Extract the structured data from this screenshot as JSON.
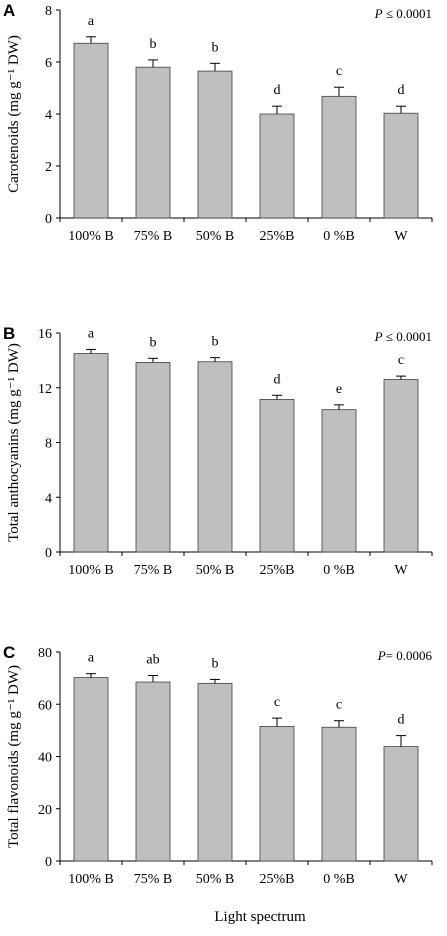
{
  "figure": {
    "xlabel": "Light spectrum"
  },
  "chart_data": [
    {
      "type": "bar",
      "panel": "A",
      "ylabel": "Carotenoids (mg g⁻¹ DW)",
      "p_label": "P",
      "p_value": " ≤ 0.0001",
      "categories": [
        "100% B",
        "75% B",
        "50% B",
        "25%B",
        "0 %B",
        "W"
      ],
      "values": [
        6.72,
        5.8,
        5.65,
        4.0,
        4.68,
        4.03
      ],
      "errors": [
        0.25,
        0.28,
        0.3,
        0.3,
        0.35,
        0.27
      ],
      "letters": [
        "a",
        "b",
        "b",
        "d",
        "c",
        "d"
      ],
      "ylim": [
        0,
        8
      ],
      "yticks": [
        "0",
        "2",
        "4",
        "6",
        "8"
      ],
      "bar_color": "#bfbfbf"
    },
    {
      "type": "bar",
      "panel": "B",
      "ylabel": "Total anthocyanins (mg g⁻¹ DW)",
      "p_label": "P",
      "p_value": " ≤ 0.0001",
      "categories": [
        "100% B",
        "75% B",
        "50% B",
        "25%B",
        "0 %B",
        "W"
      ],
      "values": [
        14.5,
        13.85,
        13.9,
        11.15,
        10.4,
        12.6
      ],
      "errors": [
        0.3,
        0.3,
        0.3,
        0.3,
        0.35,
        0.25
      ],
      "letters": [
        "a",
        "b",
        "b",
        "d",
        "e",
        "c"
      ],
      "ylim": [
        0,
        16
      ],
      "yticks": [
        "0",
        "4",
        "8",
        "12",
        "16"
      ],
      "bar_color": "#bfbfbf"
    },
    {
      "type": "bar",
      "panel": "C",
      "ylabel": "Total flavonoids (mg g⁻¹ DW)",
      "p_label": "P",
      "p_value": "= 0.0006",
      "categories": [
        "100% B",
        "75% B",
        "50% B",
        "25%B",
        "0 %B",
        "W"
      ],
      "values": [
        70.2,
        68.5,
        68.0,
        51.5,
        51.2,
        43.8
      ],
      "errors": [
        1.5,
        2.5,
        1.5,
        3.2,
        2.5,
        4.2
      ],
      "letters": [
        "a",
        "ab",
        "b",
        "c",
        "c",
        "d"
      ],
      "ylim": [
        0,
        80
      ],
      "yticks": [
        "0",
        "20",
        "40",
        "60",
        "80"
      ],
      "bar_color": "#bfbfbf"
    }
  ]
}
